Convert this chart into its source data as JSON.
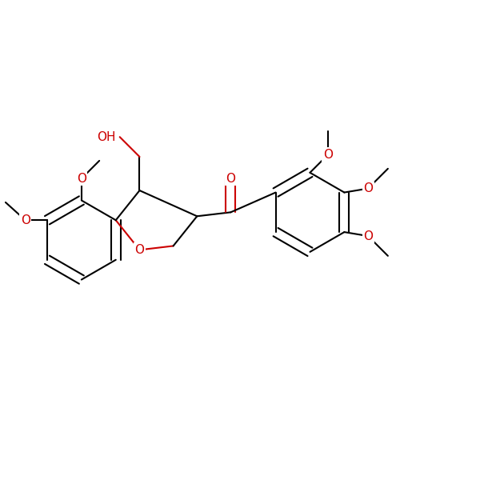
{
  "bg": "#ffffff",
  "bk": "#000000",
  "rd": "#cc0000",
  "lw": 1.5,
  "fs": 11,
  "figsize": [
    6.0,
    6.0
  ],
  "dpi": 100,
  "xlim": [
    -3.5,
    8.5
  ],
  "ylim": [
    -4.5,
    4.5
  ]
}
